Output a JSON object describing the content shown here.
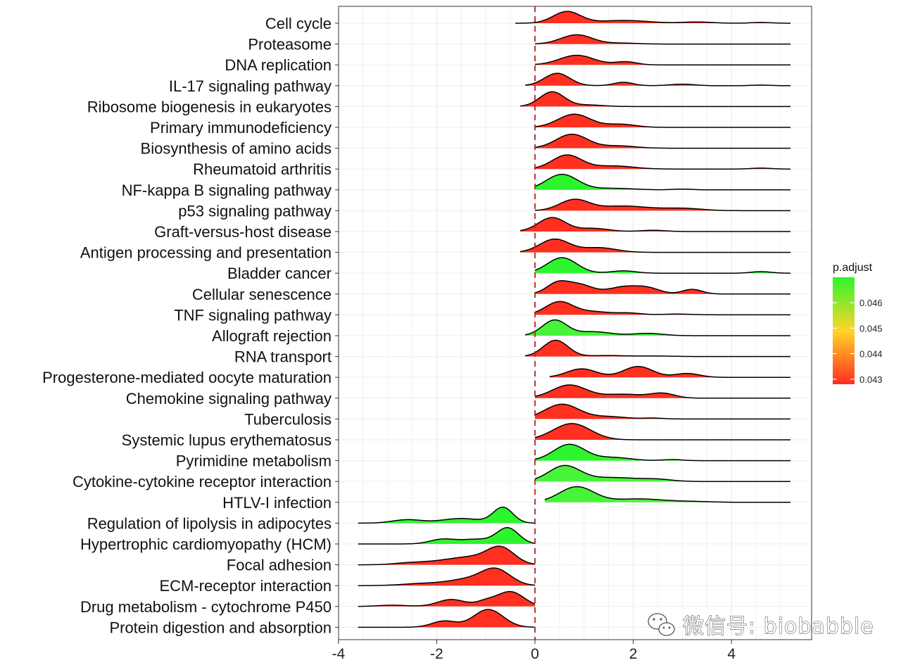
{
  "watermark": "微信号: biobabble",
  "chart_data": {
    "type": "ridgeline",
    "title": "",
    "xlabel": "",
    "ylabel": "",
    "xlim": [
      -4,
      5.5
    ],
    "x_ticks": [
      -4,
      -2,
      0,
      2,
      4
    ],
    "x_tick_labels": [
      "-4",
      "-2",
      "0",
      "2",
      "4"
    ],
    "reference_line_x": 0,
    "grid": true,
    "legend": {
      "title": "p.adjust",
      "position": "right",
      "type": "colorbar",
      "range": [
        0.0428,
        0.047
      ],
      "ticks": [
        0.043,
        0.044,
        0.045,
        0.046
      ],
      "tick_labels": [
        "0.043",
        "0.044",
        "0.045",
        "0.046"
      ],
      "colors": [
        "#ff2d1e",
        "#ffd52a",
        "#2df52d"
      ]
    },
    "series": [
      {
        "name": "Cell cycle",
        "p_adjust": 0.043,
        "fill": "#ff3020",
        "range": [
          -0.4,
          5.2
        ],
        "peaks": [
          [
            0.65,
            0.75,
            0.28
          ],
          [
            1.8,
            0.18,
            0.5
          ],
          [
            3.3,
            0.08,
            0.3
          ],
          [
            4.6,
            0.05,
            0.2
          ]
        ]
      },
      {
        "name": "Proteasome",
        "p_adjust": 0.043,
        "fill": "#ff3020",
        "range": [
          0,
          5.2
        ],
        "peaks": [
          [
            0.85,
            0.6,
            0.32
          ],
          [
            1.8,
            0.06,
            0.3
          ]
        ]
      },
      {
        "name": "DNA replication",
        "p_adjust": 0.043,
        "fill": "#ff3020",
        "range": [
          0,
          5.2
        ],
        "peaks": [
          [
            0.85,
            0.62,
            0.35
          ],
          [
            1.85,
            0.2,
            0.22
          ]
        ]
      },
      {
        "name": "IL-17 signaling pathway",
        "p_adjust": 0.043,
        "fill": "#ff3020",
        "range": [
          -0.2,
          5.2
        ],
        "peaks": [
          [
            0.45,
            0.8,
            0.26
          ],
          [
            1.8,
            0.22,
            0.2
          ],
          [
            3.0,
            0.1,
            0.25
          ],
          [
            4.6,
            0.04,
            0.2
          ]
        ]
      },
      {
        "name": "Ribosome biogenesis in eukaryotes",
        "p_adjust": 0.043,
        "fill": "#ff3020",
        "range": [
          -0.3,
          5.2
        ],
        "peaks": [
          [
            0.35,
            0.95,
            0.25
          ],
          [
            1.1,
            0.1,
            0.3
          ]
        ]
      },
      {
        "name": "Primary immunodeficiency",
        "p_adjust": 0.043,
        "fill": "#ff3020",
        "range": [
          0,
          5.2
        ],
        "peaks": [
          [
            0.8,
            0.85,
            0.33
          ],
          [
            1.75,
            0.2,
            0.3
          ]
        ]
      },
      {
        "name": "Biosynthesis of amino acids",
        "p_adjust": 0.043,
        "fill": "#ff3020",
        "range": [
          0,
          5.2
        ],
        "peaks": [
          [
            0.75,
            0.9,
            0.32
          ],
          [
            1.7,
            0.15,
            0.35
          ]
        ]
      },
      {
        "name": "Rheumatoid arthritis",
        "p_adjust": 0.043,
        "fill": "#ff3020",
        "range": [
          0,
          5.2
        ],
        "peaks": [
          [
            0.65,
            0.9,
            0.3
          ],
          [
            1.6,
            0.2,
            0.4
          ],
          [
            4.6,
            0.06,
            0.2
          ]
        ]
      },
      {
        "name": "NF-kappa B signaling pathway",
        "p_adjust": 0.047,
        "fill": "#2df52d",
        "range": [
          0,
          5.2
        ],
        "peaks": [
          [
            0.55,
            1.0,
            0.32
          ],
          [
            1.6,
            0.1,
            0.4
          ],
          [
            3.0,
            0.05,
            0.2
          ]
        ]
      },
      {
        "name": "p53 signaling pathway",
        "p_adjust": 0.043,
        "fill": "#ff3020",
        "range": [
          0,
          5.2
        ],
        "peaks": [
          [
            0.8,
            0.7,
            0.3
          ],
          [
            1.8,
            0.3,
            0.5
          ],
          [
            3.0,
            0.15,
            0.4
          ]
        ]
      },
      {
        "name": "Graft-versus-host disease",
        "p_adjust": 0.043,
        "fill": "#ff3020",
        "range": [
          -0.3,
          5.2
        ],
        "peaks": [
          [
            0.35,
            0.9,
            0.28
          ],
          [
            1.2,
            0.2,
            0.3
          ],
          [
            2.4,
            0.08,
            0.25
          ]
        ]
      },
      {
        "name": "Antigen processing and presentation",
        "p_adjust": 0.043,
        "fill": "#ff3020",
        "range": [
          -0.3,
          5.2
        ],
        "peaks": [
          [
            0.4,
            0.85,
            0.3
          ],
          [
            1.3,
            0.3,
            0.35
          ]
        ]
      },
      {
        "name": "Bladder cancer",
        "p_adjust": 0.047,
        "fill": "#2df52d",
        "range": [
          0,
          5.2
        ],
        "peaks": [
          [
            0.55,
            1.0,
            0.3
          ],
          [
            1.8,
            0.15,
            0.25
          ],
          [
            4.6,
            0.1,
            0.2
          ]
        ]
      },
      {
        "name": "Cellular senescence",
        "p_adjust": 0.043,
        "fill": "#ff3020",
        "range": [
          0,
          5.2
        ],
        "peaks": [
          [
            0.45,
            0.65,
            0.22
          ],
          [
            0.9,
            0.6,
            0.28
          ],
          [
            1.8,
            0.45,
            0.3
          ],
          [
            2.3,
            0.35,
            0.25
          ],
          [
            3.2,
            0.3,
            0.2
          ]
        ]
      },
      {
        "name": "TNF signaling pathway",
        "p_adjust": 0.043,
        "fill": "#ff3020",
        "range": [
          0,
          5.2
        ],
        "peaks": [
          [
            0.5,
            0.85,
            0.28
          ],
          [
            1.2,
            0.2,
            0.3
          ],
          [
            1.9,
            0.12,
            0.25
          ],
          [
            2.9,
            0.05,
            0.3
          ]
        ]
      },
      {
        "name": "Allograft rejection",
        "p_adjust": 0.0465,
        "fill": "#48f43a",
        "range": [
          -0.2,
          5.2
        ],
        "peaks": [
          [
            0.4,
            1.0,
            0.25
          ],
          [
            1.2,
            0.25,
            0.35
          ],
          [
            2.3,
            0.15,
            0.3
          ]
        ]
      },
      {
        "name": "RNA transport",
        "p_adjust": 0.043,
        "fill": "#ff3020",
        "range": [
          -0.2,
          5.2
        ],
        "peaks": [
          [
            0.42,
            1.05,
            0.25
          ],
          [
            1.5,
            0.06,
            0.4
          ],
          [
            2.5,
            0.03,
            0.3
          ]
        ]
      },
      {
        "name": "Progesterone-mediated oocyte maturation",
        "p_adjust": 0.043,
        "fill": "#ff3020",
        "range": [
          0.3,
          5.2
        ],
        "peaks": [
          [
            0.95,
            0.55,
            0.3
          ],
          [
            2.1,
            0.7,
            0.3
          ],
          [
            3.1,
            0.25,
            0.25
          ]
        ]
      },
      {
        "name": "Chemokine signaling pathway",
        "p_adjust": 0.043,
        "fill": "#ff3020",
        "range": [
          0,
          5.2
        ],
        "peaks": [
          [
            0.7,
            0.85,
            0.35
          ],
          [
            1.8,
            0.25,
            0.4
          ],
          [
            2.6,
            0.3,
            0.25
          ]
        ]
      },
      {
        "name": "Tuberculosis",
        "p_adjust": 0.043,
        "fill": "#ff3020",
        "range": [
          0,
          5.2
        ],
        "peaks": [
          [
            0.55,
            0.95,
            0.35
          ],
          [
            1.5,
            0.15,
            0.35
          ],
          [
            2.4,
            0.06,
            0.2
          ]
        ]
      },
      {
        "name": "Systemic lupus erythematosus",
        "p_adjust": 0.043,
        "fill": "#ff3020",
        "range": [
          0,
          5.2
        ],
        "peaks": [
          [
            0.75,
            1.05,
            0.38
          ]
        ]
      },
      {
        "name": "Pyrimidine metabolism",
        "p_adjust": 0.047,
        "fill": "#2df52d",
        "range": [
          0,
          5.2
        ],
        "peaks": [
          [
            0.7,
            1.05,
            0.32
          ],
          [
            1.6,
            0.2,
            0.35
          ],
          [
            2.8,
            0.07,
            0.2
          ]
        ]
      },
      {
        "name": "Cytokine-cytokine receptor interaction",
        "p_adjust": 0.0465,
        "fill": "#48f43a",
        "range": [
          0,
          5.2
        ],
        "peaks": [
          [
            0.6,
            1.0,
            0.32
          ],
          [
            1.6,
            0.25,
            0.5
          ],
          [
            2.5,
            0.12,
            0.3
          ]
        ]
      },
      {
        "name": "HTLV-I infection",
        "p_adjust": 0.0465,
        "fill": "#48f43a",
        "range": [
          0.2,
          5.2
        ],
        "peaks": [
          [
            0.85,
            1.0,
            0.35
          ],
          [
            2.1,
            0.22,
            0.5
          ],
          [
            3.2,
            0.05,
            0.4
          ]
        ]
      },
      {
        "name": "Regulation of lipolysis in adipocytes",
        "p_adjust": 0.047,
        "fill": "#2df52d",
        "range": [
          -3.6,
          0
        ],
        "peaks": [
          [
            -0.65,
            1.0,
            0.2
          ],
          [
            -1.5,
            0.3,
            0.4
          ],
          [
            -2.6,
            0.22,
            0.3
          ]
        ]
      },
      {
        "name": "Hypertrophic cardiomyopathy (HCM)",
        "p_adjust": 0.047,
        "fill": "#2df52d",
        "range": [
          -3.6,
          0
        ],
        "peaks": [
          [
            -0.55,
            1.0,
            0.22
          ],
          [
            -1.2,
            0.3,
            0.35
          ],
          [
            -1.9,
            0.28,
            0.25
          ]
        ]
      },
      {
        "name": "Focal adhesion",
        "p_adjust": 0.043,
        "fill": "#ff3020",
        "range": [
          -3.6,
          0
        ],
        "peaks": [
          [
            -0.7,
            1.1,
            0.28
          ],
          [
            -1.3,
            0.4,
            0.35
          ],
          [
            -1.9,
            0.22,
            0.4
          ],
          [
            -2.6,
            0.1,
            0.3
          ]
        ]
      },
      {
        "name": "ECM-receptor interaction",
        "p_adjust": 0.043,
        "fill": "#ff3020",
        "range": [
          -3.6,
          0
        ],
        "peaks": [
          [
            -0.8,
            1.05,
            0.3
          ],
          [
            -1.4,
            0.35,
            0.35
          ],
          [
            -2.2,
            0.15,
            0.45
          ]
        ]
      },
      {
        "name": "Drug metabolism - cytochrome P450",
        "p_adjust": 0.043,
        "fill": "#ff3020",
        "range": [
          -3.6,
          0
        ],
        "peaks": [
          [
            -0.5,
            0.95,
            0.27
          ],
          [
            -1.7,
            0.45,
            0.28
          ],
          [
            -1.0,
            0.3,
            0.2
          ],
          [
            -2.9,
            0.08,
            0.3
          ]
        ]
      },
      {
        "name": "Protein digestion and absorption",
        "p_adjust": 0.043,
        "fill": "#ff3020",
        "range": [
          -3.6,
          0
        ],
        "peaks": [
          [
            -0.95,
            1.15,
            0.3
          ],
          [
            -1.85,
            0.4,
            0.25
          ]
        ]
      }
    ]
  }
}
